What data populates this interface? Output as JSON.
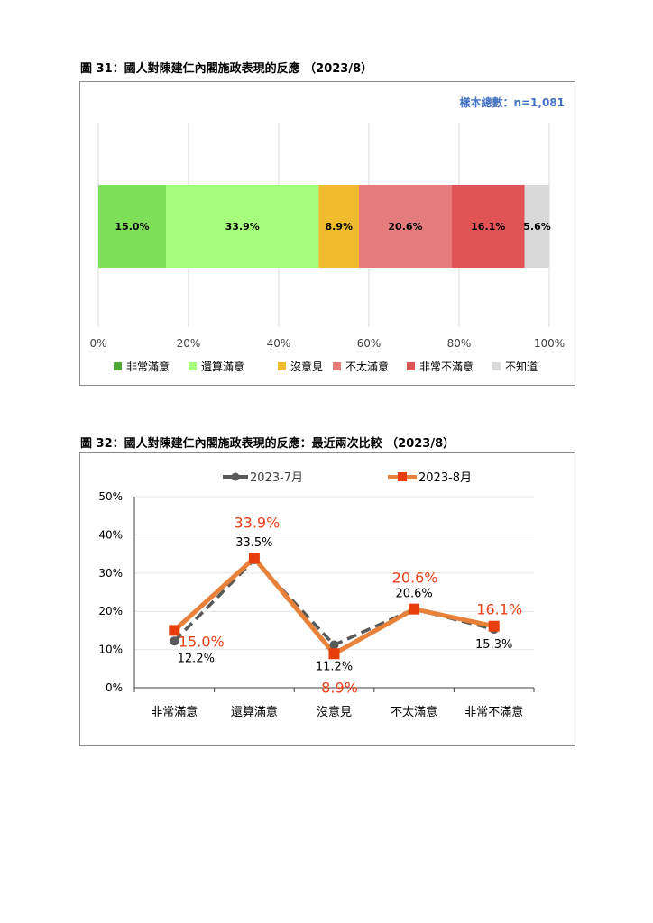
{
  "figures": {
    "fig31_title": "圖 31：國人對陳建仁內閣施政表現的反應 （2023/8）",
    "fig32_title": "圖 32：國人對陳建仁內閣施政表現的反應：最近兩次比較 （2023/8）"
  },
  "chart_data": [
    {
      "type": "bar",
      "subtype": "stacked-horizontal-100",
      "title": "圖 31：國人對陳建仁內閣施政表現的反應 （2023/8）",
      "sample_note": "樣本總數：n=1,081",
      "categories": [
        "非常滿意",
        "還算滿意",
        "沒意見",
        "不太滿意",
        "非常不滿意",
        "不知道"
      ],
      "values": [
        15.0,
        33.9,
        8.9,
        20.6,
        16.1,
        5.6
      ],
      "value_labels": [
        "15.0%",
        "33.9%",
        "8.9%",
        "20.6%",
        "16.1%",
        "5.6%"
      ],
      "colors": [
        "#7ee059",
        "#a6ff7c",
        "#f0bb2c",
        "#e47c7b",
        "#e05456",
        "#d9d9d9"
      ],
      "legend_colors": [
        "#4fa832",
        "#a6ff7c",
        "#f0bb2c",
        "#e47c7b",
        "#e05456",
        "#d9d9d9"
      ],
      "x_ticks": [
        "0%",
        "20%",
        "40%",
        "60%",
        "80%",
        "100%"
      ],
      "xlim": [
        0,
        100
      ],
      "grid": true,
      "legend_position": "bottom"
    },
    {
      "type": "line",
      "title": "圖 32：國人對陳建仁內閣施政表現的反應：最近兩次比較 （2023/8）",
      "categories": [
        "非常滿意",
        "還算滿意",
        "沒意見",
        "不太滿意",
        "非常不滿意"
      ],
      "series": [
        {
          "name": "2023-7月",
          "values": [
            12.2,
            33.5,
            11.2,
            20.6,
            15.3
          ],
          "labels": [
            "12.2%",
            "33.5%",
            "11.2%",
            "20.6%",
            "15.3%"
          ],
          "color": "#595959"
        },
        {
          "name": "2023-8月",
          "values": [
            15.0,
            33.9,
            8.9,
            20.6,
            16.1
          ],
          "labels": [
            "15.0%",
            "33.9%",
            "8.9%",
            "20.6%",
            "16.1%"
          ],
          "color": "#e8823a",
          "marker_color": "#e83d0c",
          "label_color": "#e8411a"
        }
      ],
      "y_ticks": [
        "0%",
        "10%",
        "20%",
        "30%",
        "40%",
        "50%"
      ],
      "ylim": [
        0,
        50
      ],
      "grid": true,
      "legend_position": "top"
    }
  ]
}
